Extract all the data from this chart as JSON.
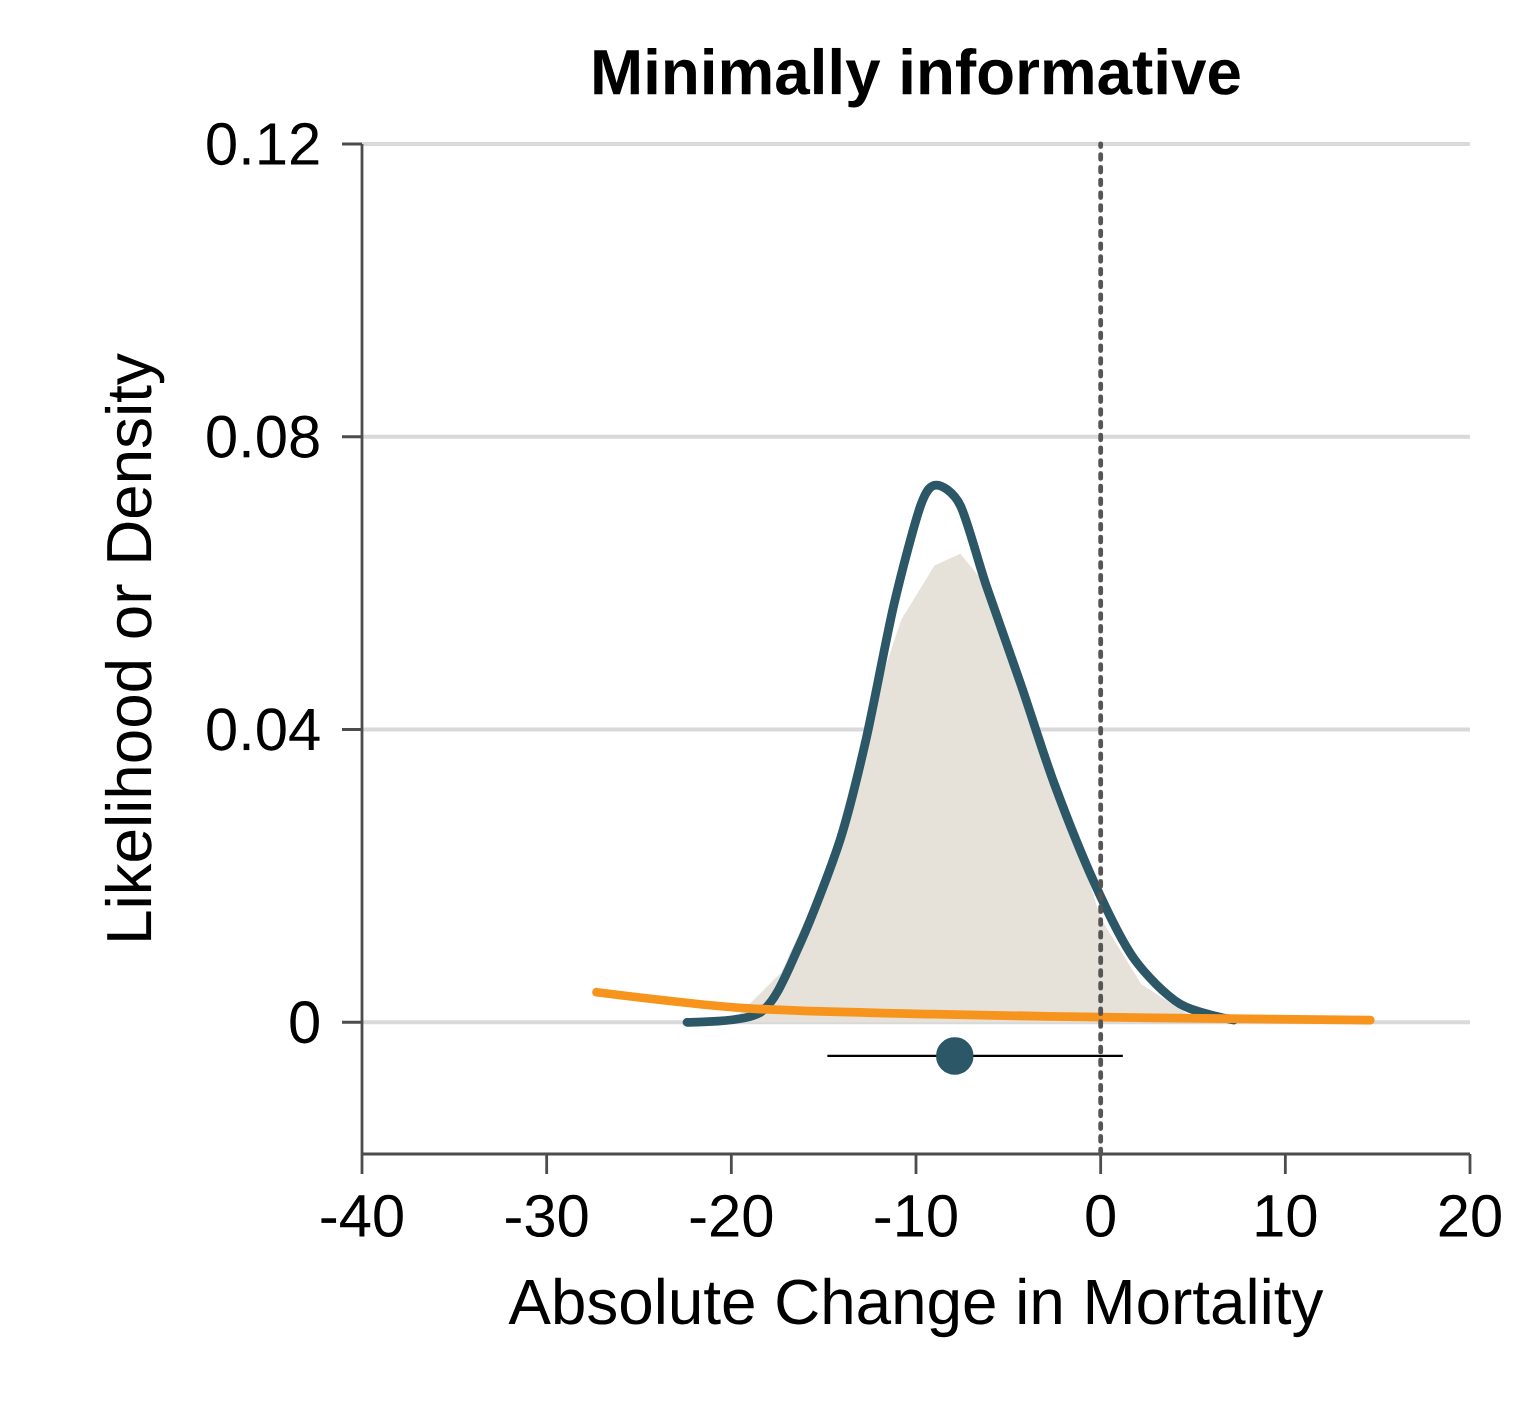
{
  "chart_data": {
    "type": "line",
    "title": "Minimally informative",
    "xlabel": "Absolute Change in Mortality",
    "ylabel": "Likelihood or Density",
    "xlim": [
      -40,
      20
    ],
    "ylim": [
      -0.018,
      0.12
    ],
    "xticks": [
      -40,
      -30,
      -20,
      -10,
      0,
      10,
      20
    ],
    "yticks": [
      0,
      0.04,
      0.08,
      0.12
    ],
    "grid": "y",
    "legend": false,
    "ref_lines": [
      {
        "axis": "x",
        "value": 0,
        "line_style": "dotted",
        "color": "#555555"
      }
    ],
    "series": [
      {
        "type": "area",
        "color": "#e6e2da",
        "x": [
          -19.8,
          -17.3,
          -14.8,
          -12.7,
          -10.8,
          -9.0,
          -7.6,
          -6.2,
          -4.0,
          -1.8,
          0,
          2.2,
          5.1,
          7.0
        ],
        "values": [
          0.0005,
          0.0068,
          0.0205,
          0.0406,
          0.055,
          0.0624,
          0.064,
          0.0597,
          0.045,
          0.0287,
          0.0142,
          0.0052,
          0.0005,
          0.0
        ]
      },
      {
        "color": "#2c5766",
        "x": [
          -22.4,
          -18.4,
          -16.3,
          -14.1,
          -12.7,
          -11.2,
          -9.75,
          -8.9,
          -7.6,
          -6.2,
          -4.3,
          -2.5,
          -0.3,
          1.8,
          4.3,
          7.2
        ],
        "values": [
          0.0,
          0.0014,
          0.0106,
          0.025,
          0.0387,
          0.057,
          0.0706,
          0.0734,
          0.0706,
          0.0597,
          0.046,
          0.0325,
          0.0188,
          0.0087,
          0.0025,
          0.0003
        ]
      },
      {
        "color": "#f7941d",
        "x": [
          -27.3,
          -19.1,
          -9.1,
          2.9,
          14.6
        ],
        "values": [
          0.0041,
          0.0019,
          0.0011,
          0.0006,
          0.0003
        ]
      },
      {
        "type": "scatter",
        "color": "#2c5766",
        "marker": "circle",
        "x": [
          -7.9
        ],
        "values": [
          -0.0046
        ],
        "xerrors": [
          [
            -14.8,
            1.2
          ]
        ]
      }
    ]
  }
}
